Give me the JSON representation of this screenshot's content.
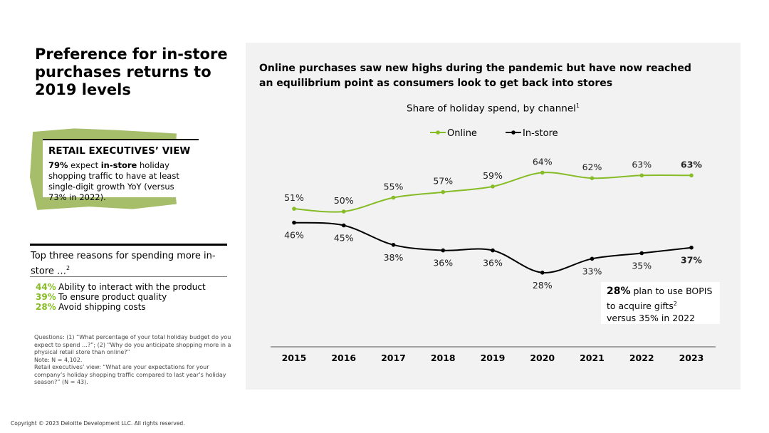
{
  "title": "Preference for in-store purchases returns to 2019 levels",
  "exec": {
    "heading": "RETAIL EXECUTIVES’ VIEW",
    "pct": "79%",
    "t1": " expect ",
    "bold": "in-store",
    "t2": " holiday shopping traffic to have at least single-digit growth YoY (versus 73% in 2022)."
  },
  "reasons": {
    "heading": "Top three reasons for spending more in-store …",
    "sup": "2",
    "items": [
      {
        "pct": "44%",
        "label": "Ability to interact with the product"
      },
      {
        "pct": "39%",
        "label": "To ensure product quality"
      },
      {
        "pct": "28%",
        "label": "Avoid shipping costs"
      }
    ]
  },
  "notes": [
    "Questions: (1) “What percentage of your total holiday budget do you expect to spend …?”; (2) “Why do you anticipate shopping more in a physical retail store than online?”",
    "Note: N = 4,102.",
    "Retail executives’ view: “What are your expectations for your company’s holiday shopping traffic compared to last year’s holiday season?” (N = 43)."
  ],
  "copyright": "Copyright © 2023 Deloitte Development LLC. All rights reserved.",
  "subtitle": "Online purchases saw new highs during the pandemic but have now reached an equilibrium point as consumers look to get back into stores",
  "bopis": {
    "pct": "28%",
    "t1": " plan to use BOPIS to acquire gifts",
    "sup": "2",
    "t2": "versus 35% in 2022"
  },
  "colors": {
    "online": "#86bc25",
    "instore": "#000000"
  },
  "chart_data": {
    "type": "line",
    "title": "Share of holiday spend, by channel",
    "title_sup": "1",
    "categories": [
      "2015",
      "2016",
      "2017",
      "2018",
      "2019",
      "2020",
      "2021",
      "2022",
      "2023"
    ],
    "series": [
      {
        "name": "Online",
        "values": [
          51,
          50,
          55,
          57,
          59,
          64,
          62,
          63,
          63
        ]
      },
      {
        "name": "In-store",
        "values": [
          46,
          45,
          38,
          36,
          36,
          28,
          33,
          35,
          37
        ]
      }
    ],
    "legend": "top-center",
    "grid": false
  }
}
